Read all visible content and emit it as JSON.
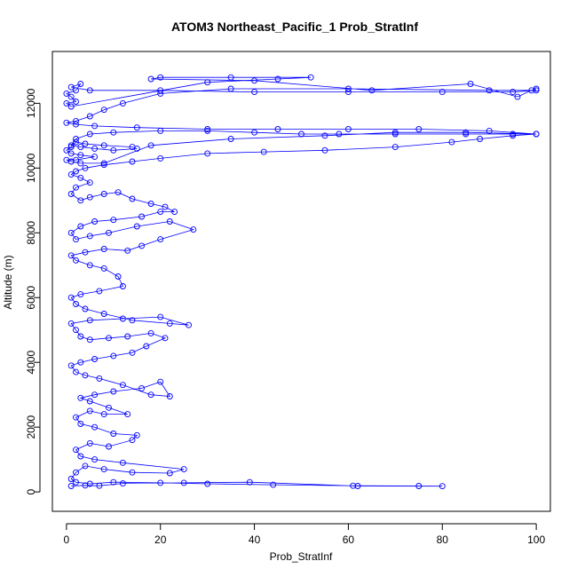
{
  "chart_data": {
    "type": "scatter",
    "title": "ATOM3 Northeast_Pacific_1 Prob_StratInf",
    "xlabel": "Prob_StratInf",
    "ylabel": "Altitude (m)",
    "xlim": [
      -3,
      103
    ],
    "ylim": [
      -600,
      13600
    ],
    "x_ticks": [
      0,
      20,
      40,
      60,
      80,
      100
    ],
    "y_ticks": [
      0,
      2000,
      4000,
      6000,
      8000,
      10000,
      12000
    ],
    "grid": false,
    "marker": "open-circle",
    "connected": true,
    "series": [
      {
        "color": "#0000ff",
        "points": [
          [
            1,
            180
          ],
          [
            4,
            200
          ],
          [
            7,
            190
          ],
          [
            12,
            260
          ],
          [
            25,
            280
          ],
          [
            39,
            300
          ],
          [
            62,
            180
          ],
          [
            80,
            175
          ],
          [
            75,
            180
          ],
          [
            61,
            190
          ],
          [
            44,
            220
          ],
          [
            30,
            250
          ],
          [
            20,
            280
          ],
          [
            10,
            300
          ],
          [
            5,
            250
          ],
          [
            2,
            300
          ],
          [
            1,
            400
          ],
          [
            2,
            600
          ],
          [
            4,
            800
          ],
          [
            8,
            700
          ],
          [
            14,
            600
          ],
          [
            22,
            580
          ],
          [
            25,
            700
          ],
          [
            12,
            900
          ],
          [
            6,
            1000
          ],
          [
            3,
            1100
          ],
          [
            2,
            1300
          ],
          [
            5,
            1500
          ],
          [
            9,
            1400
          ],
          [
            14,
            1600
          ],
          [
            15,
            1750
          ],
          [
            10,
            1800
          ],
          [
            6,
            2000
          ],
          [
            3,
            2100
          ],
          [
            2,
            2300
          ],
          [
            5,
            2500
          ],
          [
            8,
            2400
          ],
          [
            13,
            2400
          ],
          [
            9,
            2600
          ],
          [
            5,
            2800
          ],
          [
            3,
            2900
          ],
          [
            6,
            3000
          ],
          [
            10,
            3100
          ],
          [
            16,
            3200
          ],
          [
            20,
            3400
          ],
          [
            22,
            2950
          ],
          [
            18,
            3000
          ],
          [
            12,
            3300
          ],
          [
            7,
            3500
          ],
          [
            4,
            3600
          ],
          [
            2,
            3700
          ],
          [
            1,
            3900
          ],
          [
            3,
            4000
          ],
          [
            6,
            4100
          ],
          [
            10,
            4200
          ],
          [
            14,
            4300
          ],
          [
            17,
            4500
          ],
          [
            21,
            4750
          ],
          [
            18,
            4900
          ],
          [
            13,
            4800
          ],
          [
            9,
            4750
          ],
          [
            5,
            4700
          ],
          [
            3,
            4800
          ],
          [
            2,
            5000
          ],
          [
            1,
            5200
          ],
          [
            5,
            5300
          ],
          [
            12,
            5350
          ],
          [
            20,
            5400
          ],
          [
            26,
            5150
          ],
          [
            22,
            5200
          ],
          [
            14,
            5300
          ],
          [
            8,
            5500
          ],
          [
            4,
            5650
          ],
          [
            2,
            5800
          ],
          [
            1,
            6000
          ],
          [
            3,
            6100
          ],
          [
            7,
            6200
          ],
          [
            12,
            6350
          ],
          [
            11,
            6650
          ],
          [
            8,
            6900
          ],
          [
            5,
            7000
          ],
          [
            2,
            7150
          ],
          [
            1,
            7300
          ],
          [
            4,
            7400
          ],
          [
            8,
            7500
          ],
          [
            13,
            7450
          ],
          [
            16,
            7600
          ],
          [
            20,
            7800
          ],
          [
            27,
            8100
          ],
          [
            22,
            8350
          ],
          [
            15,
            8200
          ],
          [
            9,
            8000
          ],
          [
            5,
            7900
          ],
          [
            2,
            7800
          ],
          [
            1,
            8000
          ],
          [
            3,
            8200
          ],
          [
            6,
            8350
          ],
          [
            10,
            8400
          ],
          [
            16,
            8500
          ],
          [
            20,
            8650
          ],
          [
            23,
            8650
          ],
          [
            21,
            8800
          ],
          [
            18,
            8900
          ],
          [
            14,
            9050
          ],
          [
            11,
            9250
          ],
          [
            8,
            9200
          ],
          [
            5,
            9100
          ],
          [
            3,
            9000
          ],
          [
            1,
            9200
          ],
          [
            2,
            9400
          ],
          [
            5,
            9550
          ],
          [
            3,
            9700
          ],
          [
            1,
            9800
          ],
          [
            2,
            9900
          ],
          [
            4,
            10000
          ],
          [
            8,
            10100
          ],
          [
            14,
            10200
          ],
          [
            20,
            10300
          ],
          [
            30,
            10450
          ],
          [
            42,
            10500
          ],
          [
            55,
            10550
          ],
          [
            70,
            10650
          ],
          [
            82,
            10800
          ],
          [
            88,
            10900
          ],
          [
            95,
            11000
          ],
          [
            100,
            11050
          ],
          [
            95,
            11050
          ],
          [
            85,
            11050
          ],
          [
            70,
            11050
          ],
          [
            58,
            11050
          ],
          [
            50,
            11050
          ],
          [
            40,
            11100
          ],
          [
            30,
            11150
          ],
          [
            20,
            11150
          ],
          [
            10,
            11100
          ],
          [
            5,
            11050
          ],
          [
            2,
            10900
          ],
          [
            1,
            10700
          ],
          [
            3,
            10650
          ],
          [
            6,
            10600
          ],
          [
            10,
            10550
          ],
          [
            15,
            10600
          ],
          [
            14,
            10650
          ],
          [
            8,
            10700
          ],
          [
            4,
            10750
          ],
          [
            2,
            10800
          ],
          [
            1,
            10650
          ],
          [
            0,
            10550
          ],
          [
            1,
            10450
          ],
          [
            3,
            10400
          ],
          [
            6,
            10350
          ],
          [
            2,
            10250
          ],
          [
            0,
            10250
          ],
          [
            1,
            10200
          ],
          [
            3,
            10150
          ],
          [
            8,
            10150
          ],
          [
            18,
            10700
          ],
          [
            35,
            10900
          ],
          [
            55,
            11000
          ],
          [
            70,
            11100
          ],
          [
            85,
            11100
          ],
          [
            100,
            11050
          ],
          [
            90,
            11150
          ],
          [
            75,
            11200
          ],
          [
            60,
            11200
          ],
          [
            45,
            11200
          ],
          [
            30,
            11200
          ],
          [
            15,
            11250
          ],
          [
            6,
            11300
          ],
          [
            2,
            11350
          ],
          [
            0,
            11400
          ],
          [
            2,
            11450
          ],
          [
            5,
            11600
          ],
          [
            8,
            11800
          ],
          [
            12,
            12000
          ],
          [
            20,
            12300
          ],
          [
            35,
            12450
          ],
          [
            60,
            12450
          ],
          [
            90,
            12400
          ],
          [
            100,
            12400
          ],
          [
            95,
            12350
          ],
          [
            80,
            12350
          ],
          [
            60,
            12350
          ],
          [
            40,
            12350
          ],
          [
            20,
            12400
          ],
          [
            5,
            12400
          ],
          [
            1,
            12500
          ],
          [
            3,
            12600
          ],
          [
            2,
            12400
          ],
          [
            0,
            12300
          ],
          [
            1,
            12200
          ],
          [
            2,
            12050
          ],
          [
            0,
            12000
          ],
          [
            1,
            11900
          ],
          [
            30,
            12650
          ],
          [
            45,
            12750
          ],
          [
            52,
            12800
          ],
          [
            35,
            12800
          ],
          [
            20,
            12800
          ],
          [
            18,
            12750
          ],
          [
            40,
            12700
          ],
          [
            65,
            12400
          ],
          [
            86,
            12600
          ],
          [
            96,
            12200
          ],
          [
            99,
            12400
          ],
          [
            100,
            12450
          ]
        ]
      }
    ]
  }
}
